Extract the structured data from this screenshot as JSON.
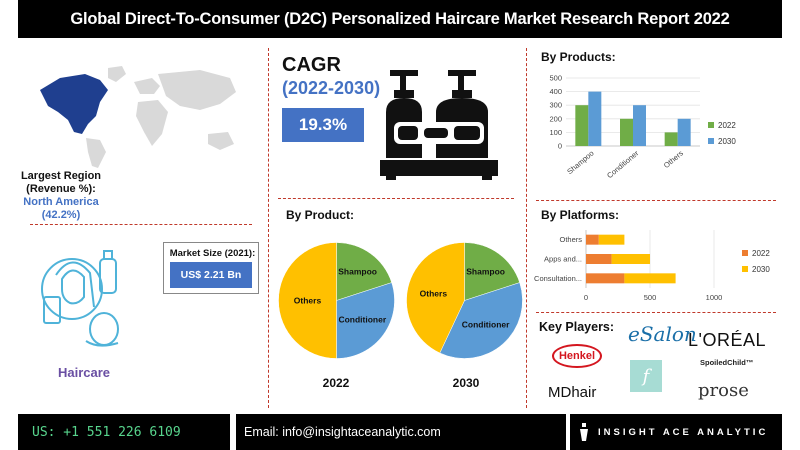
{
  "header": {
    "title": "Global Direct-To-Consumer (D2C) Personalized Haircare Market Research Report 2022"
  },
  "left": {
    "region_label": "Largest Region (Revenue %):",
    "region_value": "North America (42.2%)",
    "haircare_label": "Haircare",
    "market_size_label": "Market Size (2021):",
    "market_size_value": "US$ 2.21 Bn"
  },
  "middle": {
    "cagr_label": "CAGR",
    "cagr_period": "(2022-2030)",
    "cagr_value": "19.3%",
    "by_product_title": "By Product:"
  },
  "right": {
    "by_products_title": "By Products:",
    "by_platforms_title": "By Platforms:",
    "key_players_title": "Key Players:"
  },
  "key_players": {
    "henkel": "Henkel",
    "esalon": "eSalon",
    "loreal": "L'ORÉAL",
    "spoiled": "SpoiledChild™",
    "mdhair": "MDhair",
    "f": "f",
    "prose": "prose"
  },
  "footer": {
    "phone": "US: +1 551 226 6109",
    "email": "Email: info@insightaceanalytic.com",
    "brand": "INSIGHT ACE ANALYTIC"
  },
  "colors": {
    "blue": "#4472c4",
    "light_blue": "#5b9bd5",
    "green": "#70ad47",
    "yellow": "#ffc000",
    "orange": "#ed7d31",
    "pie_blue": "#5b9bd5",
    "pie_green": "#70ad47",
    "pie_yellow": "#ffc000"
  },
  "chart_data": [
    {
      "type": "bar",
      "title": "By Products:",
      "categories": [
        "Shampoo",
        "Conditioner",
        "Others"
      ],
      "series": [
        {
          "name": "2022",
          "values": [
            300,
            200,
            100
          ]
        },
        {
          "name": "2030",
          "values": [
            400,
            300,
            200
          ]
        }
      ],
      "ylim": [
        0,
        500
      ],
      "yticks": [
        0,
        100,
        200,
        300,
        400,
        500
      ],
      "legend": "right"
    },
    {
      "type": "bar",
      "orientation": "horizontal",
      "stacked": true,
      "title": "By Platforms:",
      "categories": [
        "Others",
        "Apps and...",
        "Consultation..."
      ],
      "series": [
        {
          "name": "2022",
          "values": [
            100,
            200,
            300
          ]
        },
        {
          "name": "2030",
          "values": [
            200,
            300,
            400
          ]
        }
      ],
      "xlim": [
        0,
        1000
      ],
      "xticks": [
        0,
        500,
        1000
      ],
      "legend": "right"
    },
    {
      "type": "pie",
      "title": "2022",
      "labels": [
        "Shampoo",
        "Conditioner",
        "Others"
      ],
      "values": [
        20,
        30,
        50
      ]
    },
    {
      "type": "pie",
      "title": "2030",
      "labels": [
        "Shampoo",
        "Conditioner",
        "Others"
      ],
      "values": [
        20,
        37,
        43
      ]
    }
  ]
}
